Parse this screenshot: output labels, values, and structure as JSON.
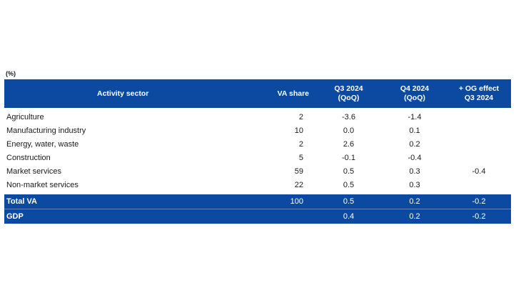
{
  "unit_note": "(%)",
  "header": {
    "sector": "Activity sector",
    "va_share": "VA share",
    "q3_line1": "Q3 2024",
    "q3_line2": "(QoQ)",
    "q4_line1": "Q4 2024",
    "q4_line2": "(QoQ)",
    "og_line1": "+ OG effect",
    "og_line2": "Q3 2024"
  },
  "rows": [
    {
      "sector": "Agriculture",
      "va_share": "2",
      "q3": "-3.6",
      "q4": "-1.4",
      "og": ""
    },
    {
      "sector": "Manufacturing industry",
      "va_share": "10",
      "q3": "0.0",
      "q4": "0.1",
      "og": ""
    },
    {
      "sector": "Energy, water, waste",
      "va_share": "2",
      "q3": "2.6",
      "q4": "0.2",
      "og": ""
    },
    {
      "sector": "Construction",
      "va_share": "5",
      "q3": "-0.1",
      "q4": "-0.4",
      "og": ""
    },
    {
      "sector": "Market services",
      "va_share": "59",
      "q3": "0.5",
      "q4": "0.3",
      "og": "-0.4"
    },
    {
      "sector": "Non-market services",
      "va_share": "22",
      "q3": "0.5",
      "q4": "0.3",
      "og": ""
    }
  ],
  "total": {
    "sector": "Total VA",
    "va_share": "100",
    "q3": "0.5",
    "q4": "0.2",
    "og": "-0.2"
  },
  "gdp": {
    "sector": "GDP",
    "va_share": "",
    "q3": "0.4",
    "q4": "0.2",
    "og": "-0.2"
  },
  "colors": {
    "header_bg": "#0b4aa0",
    "header_text": "#ffffff"
  }
}
